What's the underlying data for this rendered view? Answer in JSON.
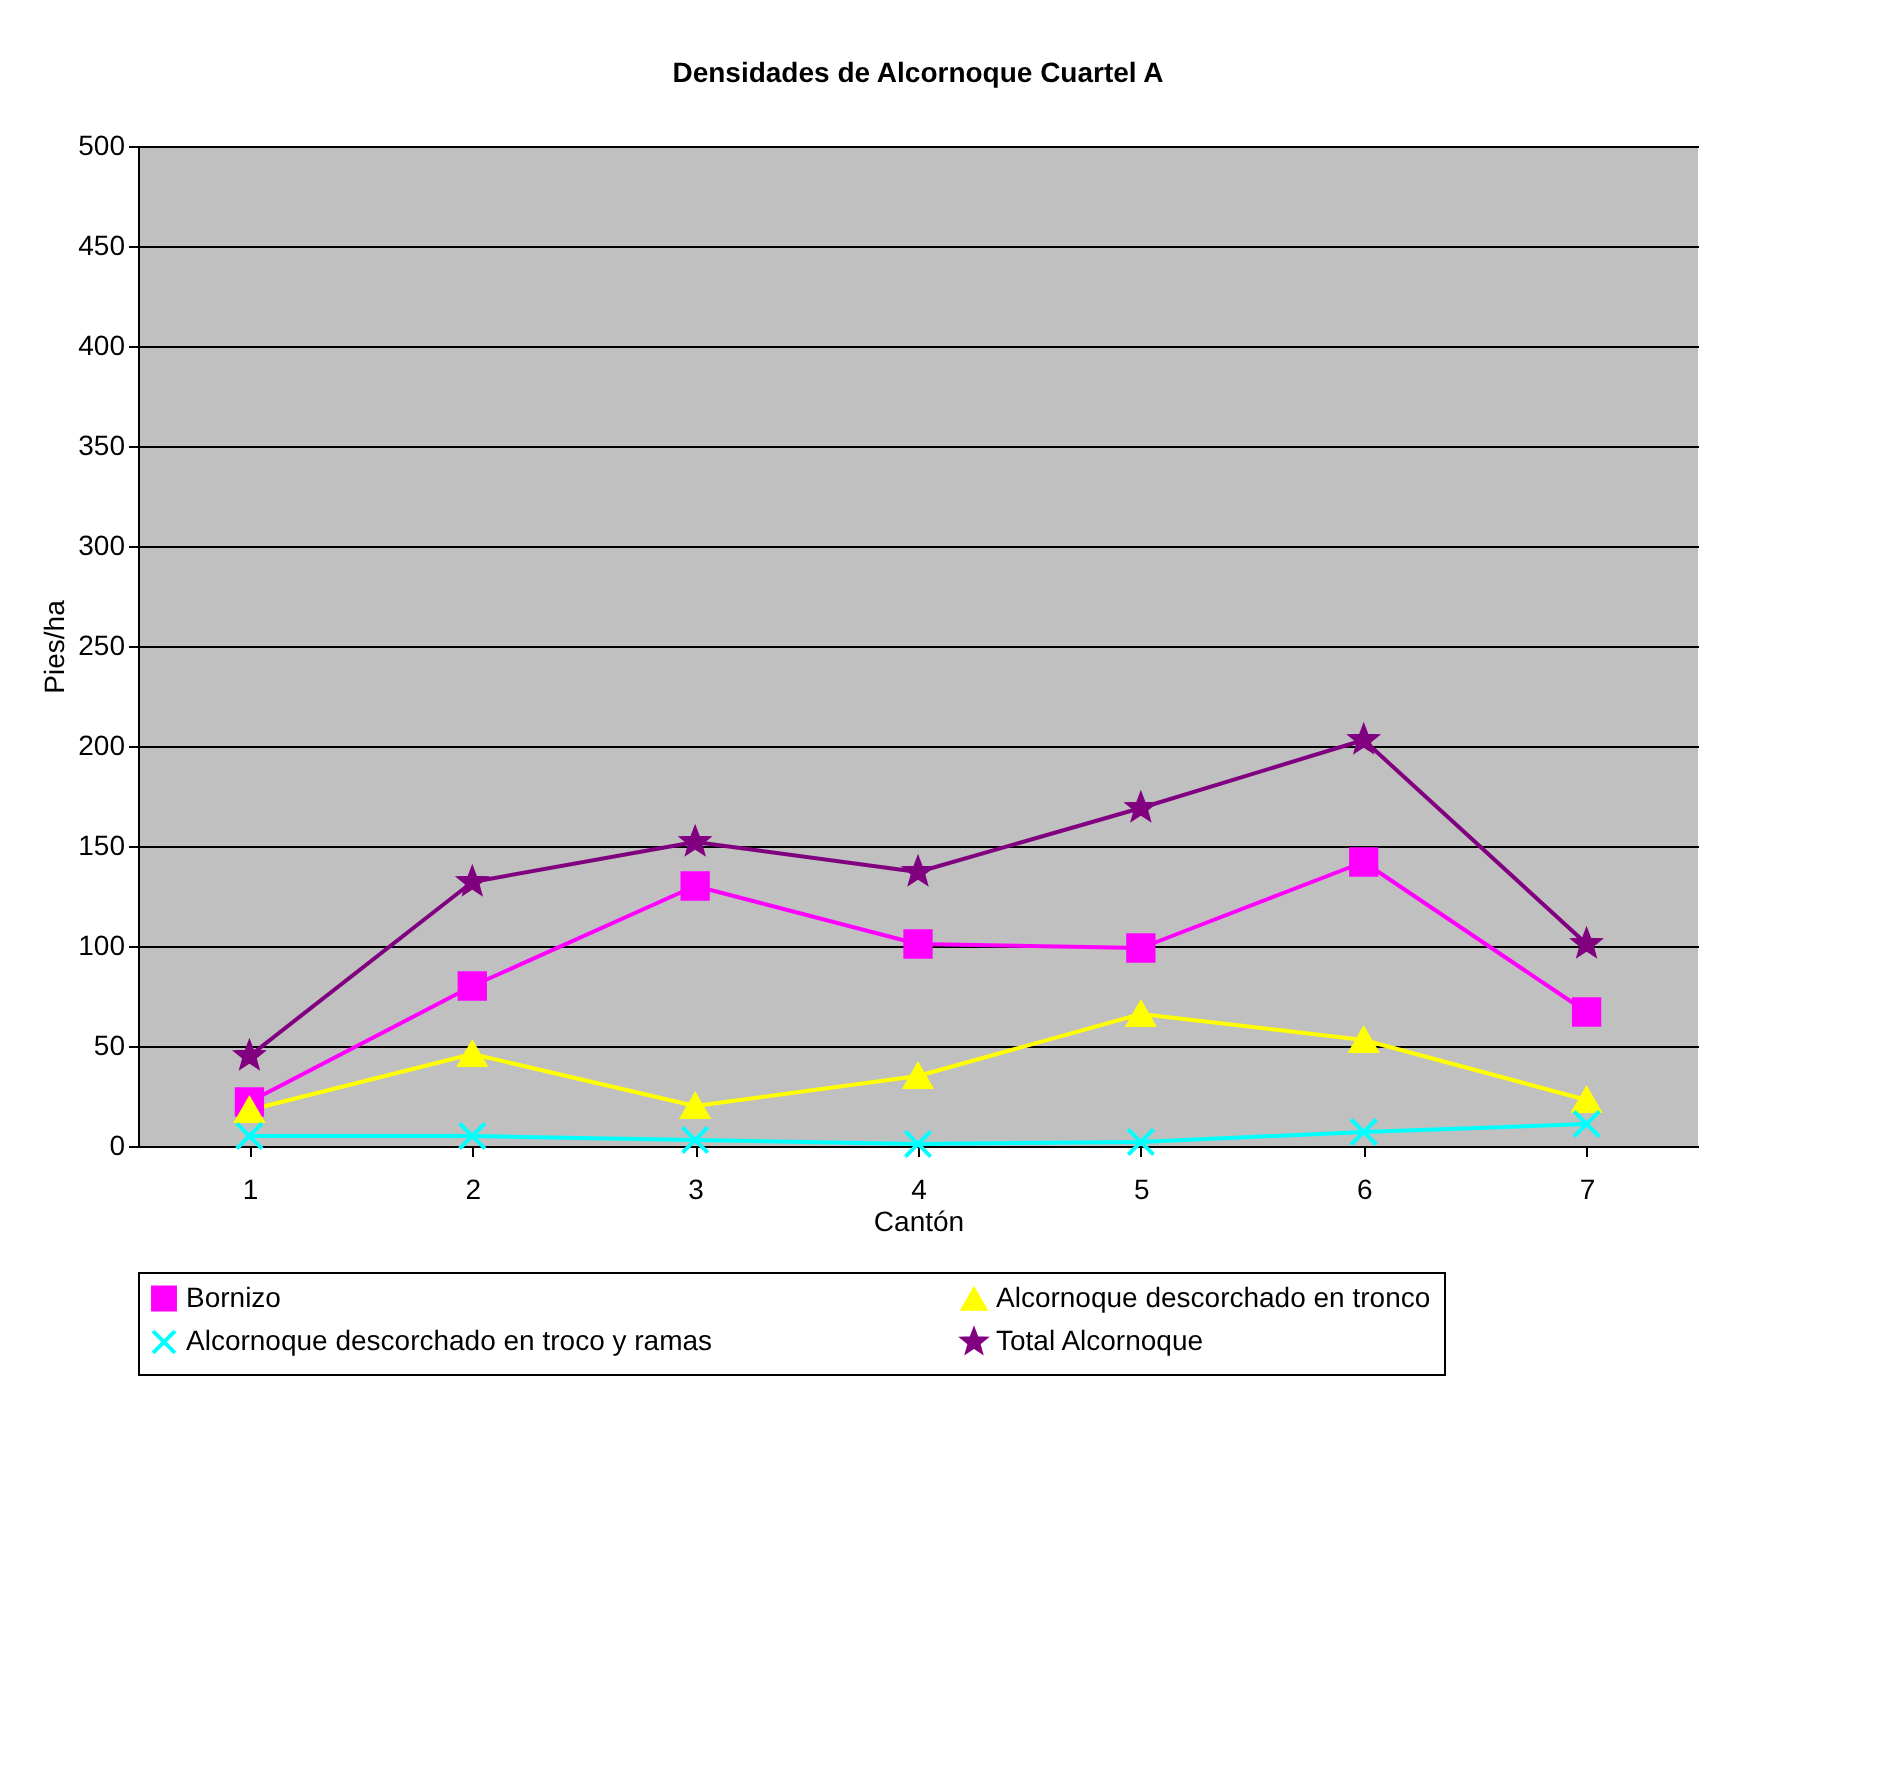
{
  "chart_data": {
    "type": "line",
    "title": "Densidades de Alcornoque Cuartel A",
    "xlabel": "Cantón",
    "ylabel": "Pies/ha",
    "categories": [
      "1",
      "2",
      "3",
      "4",
      "5",
      "6",
      "7"
    ],
    "series": [
      {
        "name": "Bornizo",
        "color": "#ff00ff",
        "marker": "square",
        "values": [
          22,
          80,
          130,
          101,
          99,
          142,
          67
        ]
      },
      {
        "name": "Alcornoque descorchado en tronco",
        "color": "#ffff00",
        "marker": "triangle",
        "values": [
          18,
          46,
          20,
          35,
          66,
          53,
          23
        ]
      },
      {
        "name": "Alcornoque descorchado en troco y ramas",
        "color": "#00ffff",
        "marker": "cross",
        "values": [
          5,
          5,
          3,
          1,
          2,
          7,
          11
        ]
      },
      {
        "name": "Total Alcornoque",
        "color": "#800080",
        "marker": "star",
        "values": [
          45,
          132,
          152,
          137,
          169,
          203,
          101
        ]
      }
    ],
    "ylim": [
      0,
      500
    ],
    "yticks": [
      0,
      50,
      100,
      150,
      200,
      250,
      300,
      350,
      400,
      450,
      500
    ],
    "grid": "y",
    "legend": "bottom",
    "line_style": "solid"
  }
}
